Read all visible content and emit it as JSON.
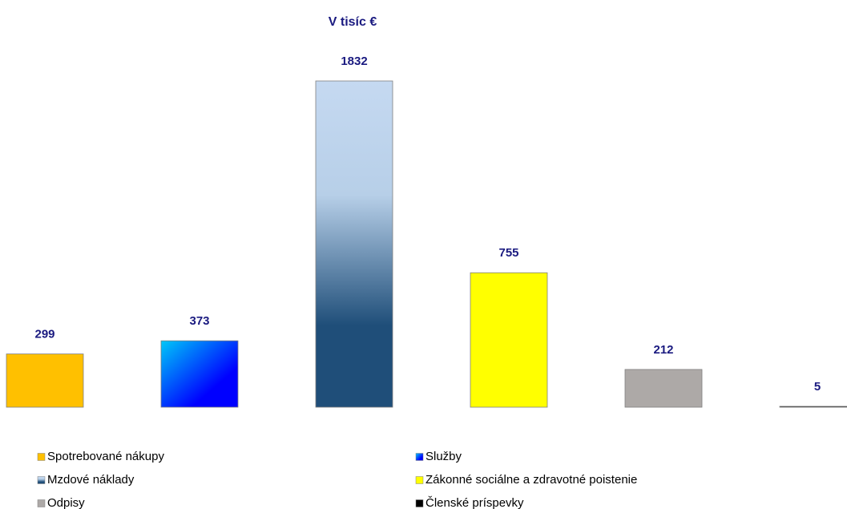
{
  "chart_data": {
    "type": "bar",
    "title": "V tisíc €",
    "categories": [
      "Spotrebované nákupy",
      "Služby",
      "Mzdové náklady",
      "Zákonné sociálne a zdravotné poistenie",
      "Odpisy",
      "Členské príspevky"
    ],
    "values": [
      299,
      373,
      1832,
      755,
      212,
      5
    ],
    "colors": [
      "#FFC000",
      "#0000FF",
      "#1F4E79",
      "#FFFF00",
      "#ADA9A7",
      "#000000"
    ]
  }
}
